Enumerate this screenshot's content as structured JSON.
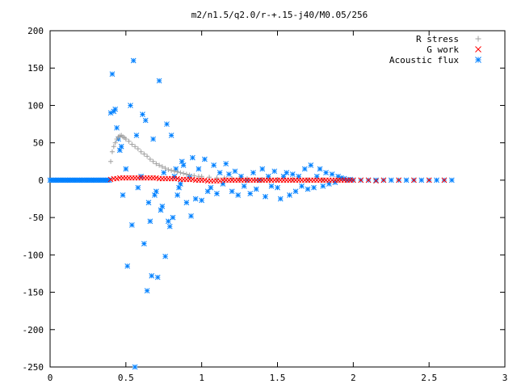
{
  "chart_data": {
    "type": "scatter",
    "title": "m2/n1.5/q2.0/r-+.15-j40/M0.05/256",
    "xlabel": "",
    "ylabel": "",
    "xlim": [
      0,
      3
    ],
    "ylim": [
      -250,
      200
    ],
    "x_ticks": [
      "0",
      "0.5",
      "1",
      "1.5",
      "2",
      "2.5",
      "3"
    ],
    "y_ticks": [
      "200",
      "150",
      "100",
      "50",
      "0",
      "-50",
      "-100",
      "-150",
      "-200",
      "-250"
    ],
    "grid": false,
    "legend_position": "top-right",
    "series": [
      {
        "name": "R stress",
        "marker": "plus",
        "color": "#a0a0a0",
        "points": [
          [
            0.4,
            25
          ],
          [
            0.41,
            38
          ],
          [
            0.42,
            45
          ],
          [
            0.43,
            50
          ],
          [
            0.44,
            55
          ],
          [
            0.45,
            58
          ],
          [
            0.46,
            59
          ],
          [
            0.47,
            60
          ],
          [
            0.48,
            58
          ],
          [
            0.49,
            57
          ],
          [
            0.5,
            55
          ],
          [
            0.52,
            52
          ],
          [
            0.54,
            48
          ],
          [
            0.56,
            45
          ],
          [
            0.58,
            42
          ],
          [
            0.6,
            38
          ],
          [
            0.62,
            35
          ],
          [
            0.64,
            32
          ],
          [
            0.66,
            28
          ],
          [
            0.68,
            25
          ],
          [
            0.7,
            22
          ],
          [
            0.72,
            20
          ],
          [
            0.74,
            18
          ],
          [
            0.76,
            16
          ],
          [
            0.78,
            14
          ],
          [
            0.8,
            13
          ],
          [
            0.82,
            12
          ],
          [
            0.84,
            11
          ],
          [
            0.86,
            10
          ],
          [
            0.88,
            9
          ],
          [
            0.9,
            8
          ],
          [
            0.92,
            7
          ],
          [
            0.95,
            6
          ],
          [
            0.98,
            5
          ],
          [
            1.0,
            5
          ],
          [
            1.05,
            4
          ],
          [
            1.1,
            3
          ],
          [
            1.15,
            3
          ],
          [
            1.2,
            2
          ],
          [
            1.25,
            2
          ],
          [
            1.3,
            2
          ],
          [
            1.35,
            1
          ],
          [
            1.4,
            1
          ],
          [
            1.45,
            1
          ],
          [
            1.5,
            1
          ],
          [
            1.6,
            1
          ],
          [
            1.7,
            0.5
          ],
          [
            1.8,
            0.5
          ],
          [
            1.9,
            0
          ]
        ]
      },
      {
        "name": "G work",
        "marker": "cross",
        "color": "#ff0000",
        "points": [
          [
            0.4,
            1
          ],
          [
            0.42,
            2
          ],
          [
            0.44,
            2
          ],
          [
            0.46,
            3
          ],
          [
            0.48,
            3
          ],
          [
            0.5,
            3
          ],
          [
            0.52,
            3
          ],
          [
            0.54,
            3
          ],
          [
            0.56,
            3
          ],
          [
            0.58,
            3
          ],
          [
            0.6,
            3
          ],
          [
            0.62,
            3
          ],
          [
            0.64,
            3
          ],
          [
            0.66,
            3
          ],
          [
            0.68,
            3
          ],
          [
            0.7,
            3
          ],
          [
            0.72,
            2
          ],
          [
            0.74,
            2
          ],
          [
            0.76,
            2
          ],
          [
            0.78,
            2
          ],
          [
            0.8,
            2
          ],
          [
            0.82,
            2
          ],
          [
            0.84,
            2
          ],
          [
            0.86,
            1
          ],
          [
            0.88,
            1
          ],
          [
            0.9,
            1
          ],
          [
            0.92,
            1
          ],
          [
            0.94,
            1
          ],
          [
            0.96,
            0
          ],
          [
            0.98,
            0
          ],
          [
            1.0,
            0
          ],
          [
            1.02,
            0
          ],
          [
            1.04,
            -1
          ],
          [
            1.06,
            -1
          ],
          [
            1.08,
            -1
          ],
          [
            1.1,
            -1
          ],
          [
            1.12,
            -1
          ],
          [
            1.14,
            0
          ],
          [
            1.16,
            0
          ],
          [
            1.18,
            0
          ],
          [
            1.2,
            0
          ],
          [
            1.22,
            0
          ],
          [
            1.24,
            0
          ],
          [
            1.26,
            0
          ],
          [
            1.28,
            0
          ],
          [
            1.3,
            0
          ],
          [
            1.32,
            0
          ],
          [
            1.34,
            0
          ],
          [
            1.36,
            0
          ],
          [
            1.38,
            0
          ],
          [
            1.4,
            0
          ],
          [
            1.42,
            0
          ],
          [
            1.44,
            0
          ],
          [
            1.46,
            0
          ],
          [
            1.48,
            0
          ],
          [
            1.5,
            0
          ],
          [
            1.52,
            0
          ],
          [
            1.54,
            0
          ],
          [
            1.56,
            0
          ],
          [
            1.58,
            0
          ],
          [
            1.6,
            0
          ],
          [
            1.62,
            0
          ],
          [
            1.64,
            0
          ],
          [
            1.66,
            0
          ],
          [
            1.68,
            0
          ],
          [
            1.7,
            0
          ],
          [
            1.72,
            0
          ],
          [
            1.74,
            0
          ],
          [
            1.76,
            0
          ],
          [
            1.78,
            0
          ],
          [
            1.8,
            0
          ],
          [
            1.82,
            0
          ],
          [
            1.84,
            0
          ],
          [
            1.86,
            0
          ],
          [
            1.88,
            0
          ],
          [
            1.9,
            0
          ],
          [
            1.92,
            0
          ],
          [
            1.94,
            0
          ],
          [
            1.96,
            0
          ],
          [
            1.98,
            0
          ],
          [
            2.0,
            0
          ],
          [
            2.05,
            0
          ],
          [
            2.1,
            0
          ],
          [
            2.15,
            -1
          ],
          [
            2.2,
            0
          ],
          [
            2.3,
            0
          ],
          [
            2.4,
            0
          ],
          [
            2.5,
            0
          ],
          [
            2.6,
            0
          ]
        ]
      },
      {
        "name": "Acoustic flux",
        "marker": "star",
        "color": "#0080ff",
        "points": [
          [
            0.0,
            0
          ],
          [
            0.01,
            0
          ],
          [
            0.02,
            0
          ],
          [
            0.03,
            0
          ],
          [
            0.04,
            0
          ],
          [
            0.05,
            0
          ],
          [
            0.06,
            0
          ],
          [
            0.07,
            0
          ],
          [
            0.08,
            0
          ],
          [
            0.09,
            0
          ],
          [
            0.1,
            0
          ],
          [
            0.11,
            0
          ],
          [
            0.12,
            0
          ],
          [
            0.13,
            0
          ],
          [
            0.14,
            0
          ],
          [
            0.15,
            0
          ],
          [
            0.16,
            0
          ],
          [
            0.17,
            0
          ],
          [
            0.18,
            0
          ],
          [
            0.19,
            0
          ],
          [
            0.2,
            0
          ],
          [
            0.21,
            0
          ],
          [
            0.22,
            0
          ],
          [
            0.23,
            0
          ],
          [
            0.24,
            0
          ],
          [
            0.25,
            0
          ],
          [
            0.26,
            0
          ],
          [
            0.27,
            0
          ],
          [
            0.28,
            0
          ],
          [
            0.29,
            0
          ],
          [
            0.3,
            0
          ],
          [
            0.31,
            0
          ],
          [
            0.32,
            0
          ],
          [
            0.33,
            0
          ],
          [
            0.34,
            0
          ],
          [
            0.35,
            0
          ],
          [
            0.36,
            0
          ],
          [
            0.37,
            0
          ],
          [
            0.38,
            0
          ],
          [
            0.39,
            0
          ],
          [
            0.4,
            90
          ],
          [
            0.41,
            142
          ],
          [
            0.42,
            92
          ],
          [
            0.43,
            95
          ],
          [
            0.44,
            70
          ],
          [
            0.45,
            55
          ],
          [
            0.46,
            40
          ],
          [
            0.47,
            45
          ],
          [
            0.48,
            -20
          ],
          [
            0.5,
            15
          ],
          [
            0.51,
            -115
          ],
          [
            0.53,
            100
          ],
          [
            0.54,
            -60
          ],
          [
            0.55,
            160
          ],
          [
            0.56,
            -250
          ],
          [
            0.57,
            60
          ],
          [
            0.58,
            -10
          ],
          [
            0.6,
            5
          ],
          [
            0.61,
            88
          ],
          [
            0.62,
            -85
          ],
          [
            0.63,
            80
          ],
          [
            0.64,
            -148
          ],
          [
            0.65,
            -30
          ],
          [
            0.66,
            -55
          ],
          [
            0.67,
            -128
          ],
          [
            0.68,
            55
          ],
          [
            0.69,
            -20
          ],
          [
            0.7,
            -15
          ],
          [
            0.71,
            -130
          ],
          [
            0.72,
            133
          ],
          [
            0.73,
            -40
          ],
          [
            0.74,
            -35
          ],
          [
            0.75,
            10
          ],
          [
            0.76,
            -102
          ],
          [
            0.77,
            75
          ],
          [
            0.78,
            -55
          ],
          [
            0.79,
            -62
          ],
          [
            0.8,
            60
          ],
          [
            0.81,
            -50
          ],
          [
            0.82,
            5
          ],
          [
            0.83,
            15
          ],
          [
            0.84,
            -20
          ],
          [
            0.85,
            -10
          ],
          [
            0.86,
            -5
          ],
          [
            0.87,
            25
          ],
          [
            0.88,
            20
          ],
          [
            0.9,
            -30
          ],
          [
            0.92,
            5
          ],
          [
            0.93,
            -48
          ],
          [
            0.94,
            30
          ],
          [
            0.96,
            -25
          ],
          [
            0.98,
            15
          ],
          [
            1.0,
            -27
          ],
          [
            1.02,
            28
          ],
          [
            1.04,
            -15
          ],
          [
            1.06,
            -10
          ],
          [
            1.08,
            20
          ],
          [
            1.1,
            -18
          ],
          [
            1.12,
            10
          ],
          [
            1.14,
            -5
          ],
          [
            1.16,
            22
          ],
          [
            1.18,
            8
          ],
          [
            1.2,
            -15
          ],
          [
            1.22,
            12
          ],
          [
            1.24,
            -20
          ],
          [
            1.26,
            5
          ],
          [
            1.28,
            -8
          ],
          [
            1.3,
            0
          ],
          [
            1.32,
            -18
          ],
          [
            1.34,
            10
          ],
          [
            1.36,
            -12
          ],
          [
            1.38,
            0
          ],
          [
            1.4,
            15
          ],
          [
            1.42,
            -22
          ],
          [
            1.44,
            5
          ],
          [
            1.46,
            -8
          ],
          [
            1.48,
            12
          ],
          [
            1.5,
            -10
          ],
          [
            1.52,
            -25
          ],
          [
            1.54,
            5
          ],
          [
            1.56,
            10
          ],
          [
            1.58,
            -20
          ],
          [
            1.6,
            8
          ],
          [
            1.62,
            -15
          ],
          [
            1.64,
            5
          ],
          [
            1.66,
            -8
          ],
          [
            1.68,
            15
          ],
          [
            1.7,
            -12
          ],
          [
            1.72,
            20
          ],
          [
            1.74,
            -10
          ],
          [
            1.76,
            5
          ],
          [
            1.78,
            15
          ],
          [
            1.8,
            -8
          ],
          [
            1.82,
            10
          ],
          [
            1.84,
            -5
          ],
          [
            1.86,
            8
          ],
          [
            1.88,
            -3
          ],
          [
            1.9,
            5
          ],
          [
            1.92,
            3
          ],
          [
            1.94,
            2
          ],
          [
            1.96,
            0
          ],
          [
            1.98,
            1
          ],
          [
            2.0,
            0
          ],
          [
            2.05,
            0
          ],
          [
            2.1,
            0
          ],
          [
            2.15,
            0
          ],
          [
            2.2,
            0
          ],
          [
            2.25,
            0
          ],
          [
            2.3,
            0
          ],
          [
            2.35,
            0
          ],
          [
            2.4,
            0
          ],
          [
            2.45,
            0
          ],
          [
            2.5,
            0
          ],
          [
            2.55,
            0
          ],
          [
            2.6,
            0
          ],
          [
            2.65,
            0
          ]
        ]
      }
    ]
  }
}
